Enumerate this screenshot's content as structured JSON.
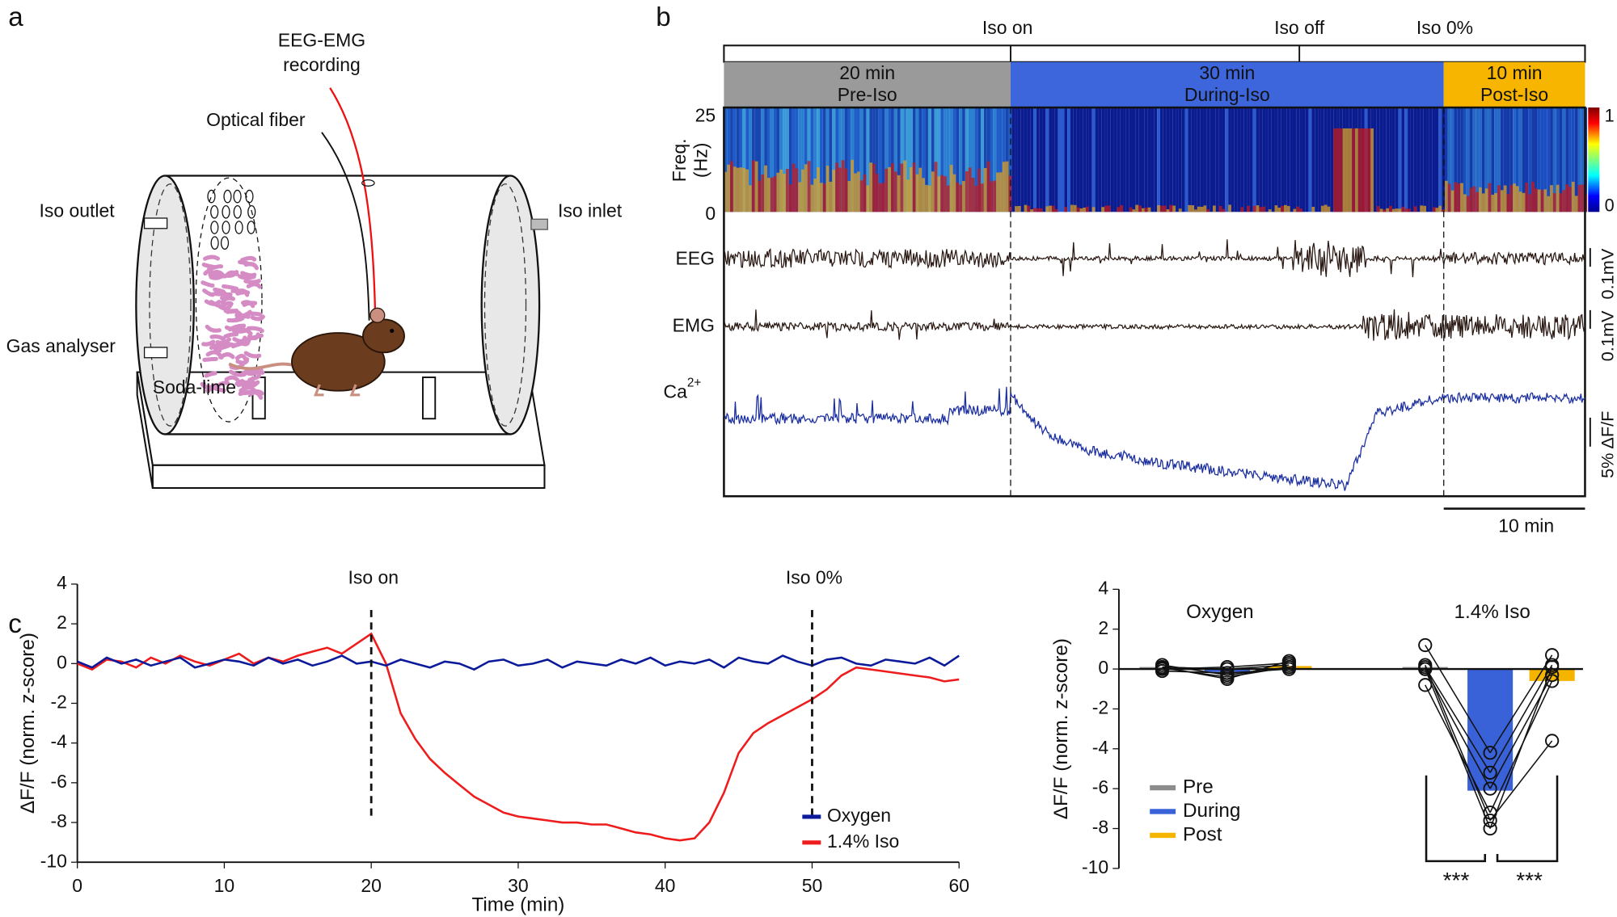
{
  "panel_labels": [
    "a",
    "b",
    "c"
  ],
  "panel_a": {
    "labels": [
      "EEG-EMG",
      "recording",
      "Optical fiber",
      "Iso outlet",
      "Iso inlet",
      "Gas analyser",
      "Soda-lime"
    ]
  },
  "panel_b": {
    "markers": [
      "Iso on",
      "Iso off",
      "Iso 0%"
    ],
    "phases": [
      {
        "duration": "20 min",
        "name": "Pre-Iso",
        "color": "#9a9a9a"
      },
      {
        "duration": "30 min",
        "name": "During-Iso",
        "color": "#3d66dd"
      },
      {
        "duration": "10 min",
        "name": "Post-Iso",
        "color": "#f7b500"
      }
    ],
    "freq_label": [
      "Freq.",
      "(Hz)"
    ],
    "freq_ticks": [
      25,
      0
    ],
    "colorbar_ticks": [
      1,
      0
    ],
    "traces": [
      "EEG",
      "EMG",
      "Ca"
    ],
    "ca_superscript": "2+",
    "scales": [
      "0.1mV",
      "0.1mV",
      "5% ΔF/F",
      "10 min"
    ]
  },
  "chart_data": [
    {
      "type": "line",
      "xlabel": "Time (min)",
      "ylabel": "ΔF/F (norm. z-score)",
      "x": [
        0,
        1,
        2,
        3,
        4,
        5,
        6,
        7,
        8,
        9,
        10,
        11,
        12,
        13,
        14,
        15,
        16,
        17,
        18,
        19,
        20,
        21,
        22,
        23,
        24,
        25,
        26,
        27,
        28,
        29,
        30,
        31,
        32,
        33,
        34,
        35,
        36,
        37,
        38,
        39,
        40,
        41,
        42,
        43,
        44,
        45,
        46,
        47,
        48,
        49,
        50,
        51,
        52,
        53,
        54,
        55,
        56,
        57,
        58,
        59,
        60
      ],
      "series": [
        {
          "name": "Oxygen",
          "color": "#0a1a9a",
          "values": [
            0.1,
            -0.2,
            0.3,
            0,
            0.2,
            -0.1,
            0.1,
            0.3,
            -0.2,
            0,
            0.2,
            0.1,
            -0.1,
            0.3,
            0,
            0.2,
            -0.1,
            0.1,
            0.4,
            0,
            0.1,
            -0.1,
            0.2,
            0,
            -0.2,
            0.1,
            0,
            -0.3,
            0.1,
            0.2,
            -0.1,
            0,
            0.2,
            -0.2,
            0.1,
            0,
            -0.1,
            0.2,
            0,
            0.3,
            -0.1,
            0.1,
            0,
            0.2,
            -0.2,
            0.3,
            0.1,
            0,
            0.4,
            0.1,
            -0.1,
            0.2,
            0.3,
            0,
            -0.1,
            0.2,
            0.1,
            0,
            0.3,
            -0.1,
            0.4
          ]
        },
        {
          "name": "1.4% Iso",
          "color": "#ee1c1c",
          "values": [
            0,
            -0.3,
            0.2,
            0.1,
            -0.2,
            0.3,
            0,
            0.4,
            0.1,
            -0.1,
            0.2,
            0.5,
            0,
            0.3,
            0.1,
            0.4,
            0.6,
            0.8,
            0.5,
            1.0,
            1.5,
            0,
            -2.5,
            -3.8,
            -4.8,
            -5.5,
            -6.1,
            -6.7,
            -7.1,
            -7.5,
            -7.7,
            -7.8,
            -7.9,
            -8.0,
            -8.0,
            -8.1,
            -8.1,
            -8.3,
            -8.5,
            -8.6,
            -8.8,
            -8.9,
            -8.8,
            -8.0,
            -6.5,
            -4.5,
            -3.5,
            -3.0,
            -2.6,
            -2.2,
            -1.8,
            -1.3,
            -0.6,
            -0.2,
            -0.3,
            -0.4,
            -0.5,
            -0.6,
            -0.7,
            -0.9,
            -0.8
          ]
        }
      ],
      "xlim": [
        0,
        60
      ],
      "xticks": [
        0,
        10,
        20,
        30,
        40,
        50,
        60
      ],
      "ylim": [
        -10,
        4
      ],
      "yticks": [
        4,
        2,
        0,
        -2,
        -4,
        -6,
        -8,
        -10
      ],
      "annotations": [
        {
          "x": 20,
          "label": "Iso on"
        },
        {
          "x": 50,
          "label": "Iso 0%"
        }
      ],
      "legend": "lower right"
    },
    {
      "type": "bar",
      "ylabel": "ΔF/F (norm. z-score)",
      "categories": [
        "Oxygen",
        "1.4% Iso"
      ],
      "series": [
        {
          "name": "Pre",
          "color": "#8c8c8c",
          "values": [
            0.1,
            0.1
          ],
          "points": [
            [
              0.1,
              0.2,
              0,
              -0.1,
              0.1,
              0.05
            ],
            [
              1.2,
              0.1,
              0,
              -0.8,
              0.2,
              0
            ]
          ]
        },
        {
          "name": "During",
          "color": "#3a62d8",
          "values": [
            -0.15,
            -6.1
          ],
          "points": [
            [
              -0.5,
              -0.3,
              0.1,
              -0.2,
              0,
              -0.4
            ],
            [
              -4.2,
              -5.2,
              -6,
              -7.2,
              -7.6,
              -8
            ]
          ]
        },
        {
          "name": "Post",
          "color": "#f5b400",
          "values": [
            0.15,
            -0.6
          ],
          "points": [
            [
              0.4,
              0.1,
              0.3,
              0,
              0.2,
              0.1
            ],
            [
              0.7,
              0.2,
              -0.3,
              -0.6,
              -3.6,
              0.1
            ]
          ]
        }
      ],
      "ylim": [
        -10,
        4
      ],
      "yticks": [
        4,
        2,
        0,
        -2,
        -4,
        -6,
        -8,
        -10
      ],
      "annotations": [
        "***",
        "***"
      ]
    }
  ]
}
